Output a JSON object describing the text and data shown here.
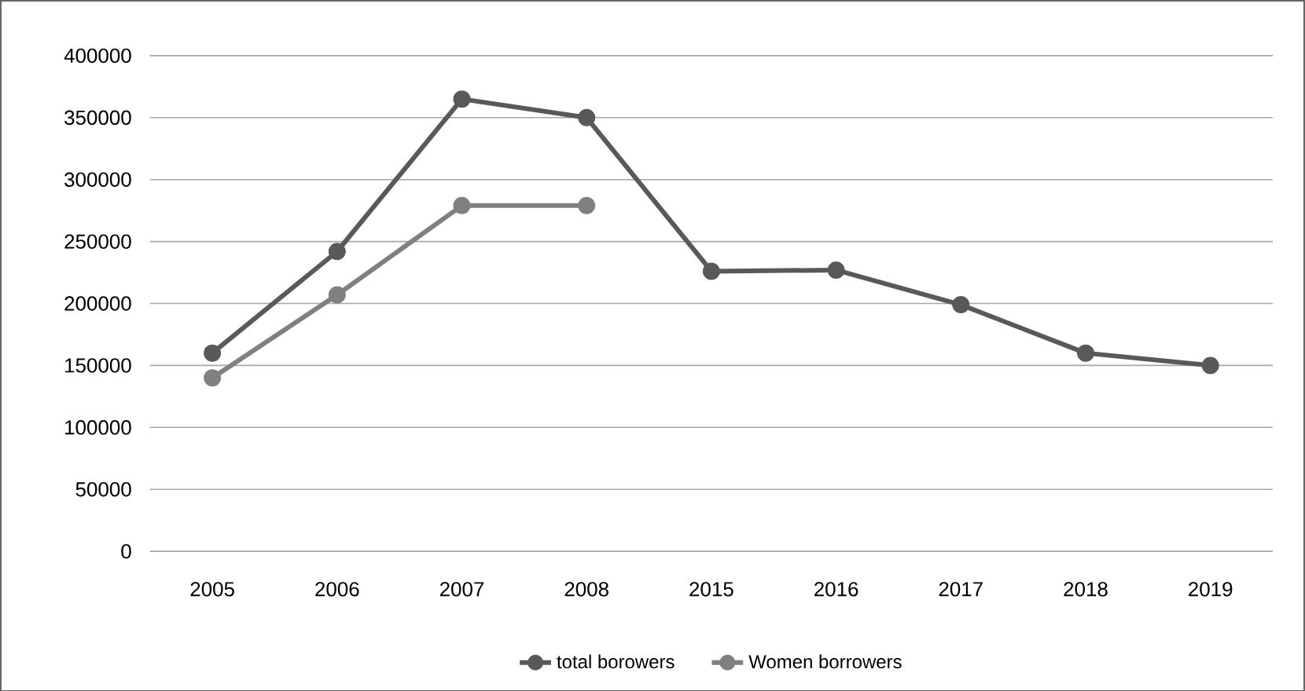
{
  "chart_data": {
    "type": "line",
    "categories": [
      "2005",
      "2006",
      "2007",
      "2008",
      "2015",
      "2016",
      "2017",
      "2018",
      "2019"
    ],
    "series": [
      {
        "name": "total borowers",
        "color": "#595959",
        "values": [
          160000,
          242000,
          365000,
          350000,
          226000,
          227000,
          199000,
          160000,
          150000
        ]
      },
      {
        "name": "Women borrowers",
        "color": "#808080",
        "values": [
          140000,
          207000,
          279000,
          279000,
          null,
          null,
          null,
          null,
          null
        ]
      }
    ],
    "ylim": [
      0,
      400000
    ],
    "yticks": [
      0,
      50000,
      100000,
      150000,
      200000,
      250000,
      300000,
      350000,
      400000
    ],
    "grid": "y",
    "legend": "bottom",
    "marker": "circle",
    "line_style": "solid"
  }
}
